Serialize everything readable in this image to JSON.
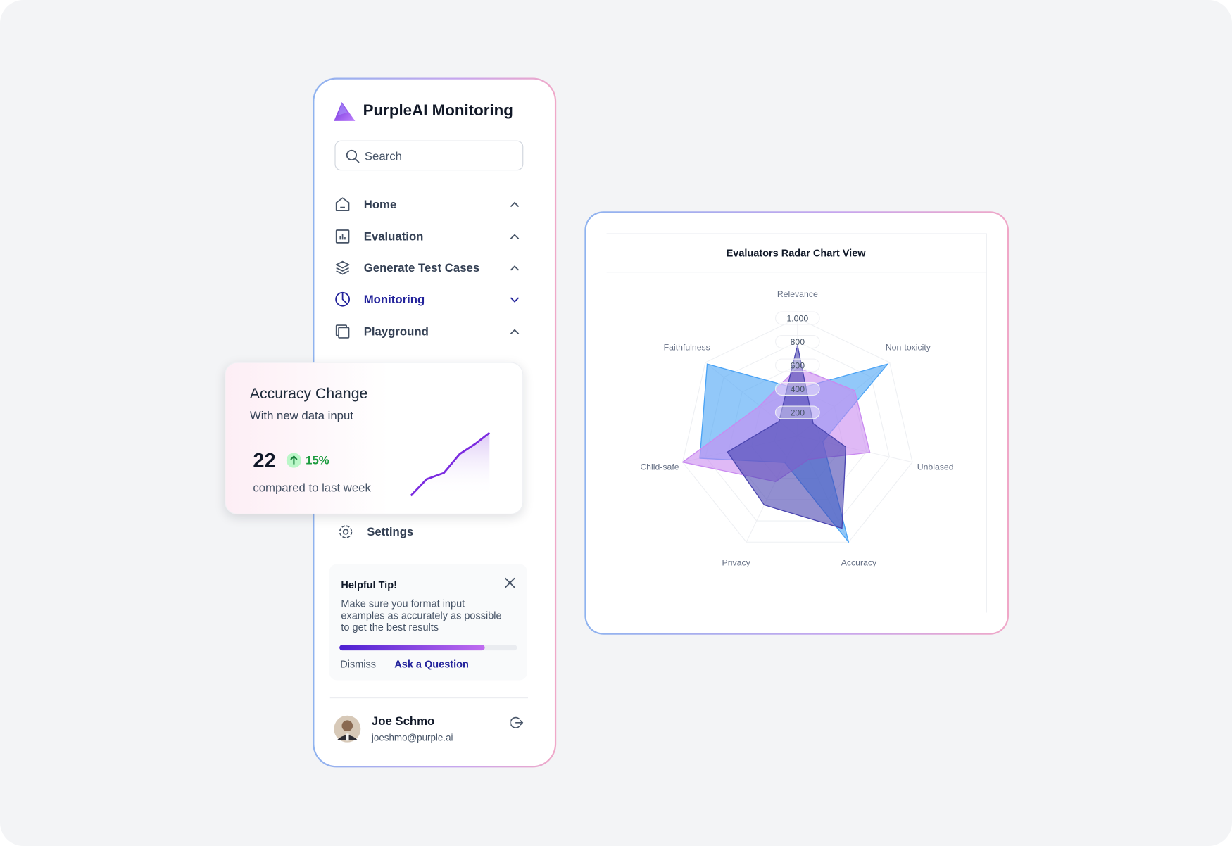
{
  "sidebar": {
    "title": "PurpleAI Monitoring",
    "search_placeholder": "Search",
    "nav": [
      "Home",
      "Evaluation",
      "Generate Test Cases",
      "Monitoring",
      "Playground"
    ],
    "settings": "Settings",
    "tip": {
      "title": "Helpful Tip!",
      "lines": [
        "Make sure you format input",
        "examples as accurately as possible",
        "to get the best results"
      ],
      "dismiss": "Dismiss",
      "ask": "Ask a Question"
    },
    "user": {
      "name": "Joe Schmo",
      "email": "joeshmo@purple.ai"
    }
  },
  "card": {
    "title": "Accuracy Change",
    "subtitle": "With new data input",
    "value": "22",
    "change": "15%",
    "caption": "compared to last week"
  },
  "chart_data": {
    "type": "radar",
    "title": "Evaluators Radar Chart View",
    "categories": [
      "Relevance",
      "Non-toxicity",
      "Unbiased",
      "Accuracy",
      "Privacy",
      "Child-safe",
      "Faithfulness"
    ],
    "ylim": [
      0,
      1000
    ],
    "yticks": [
      200,
      400,
      600,
      800,
      {
        "value": 1000,
        "label": "1,000"
      }
    ],
    "grid": true,
    "series": [
      {
        "color": "#4aa3f5",
        "values": [
          400,
          980,
          220,
          1000,
          250,
          850,
          980
        ]
      },
      {
        "color": "#c98af0",
        "values": [
          580,
          620,
          630,
          220,
          430,
          1000,
          410
        ]
      },
      {
        "color": "#4a45b0",
        "values": [
          770,
          170,
          420,
          870,
          650,
          610,
          200
        ]
      }
    ]
  }
}
